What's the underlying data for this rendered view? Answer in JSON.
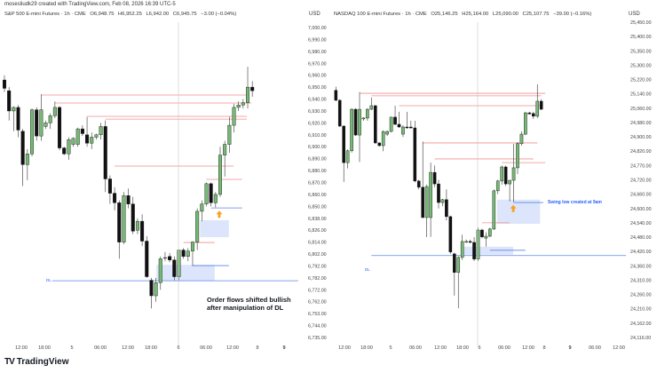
{
  "credit": "mosesliudk29 created with TradingView.com, Feb 08, 2026 16:39 UTC-5",
  "logo": {
    "text": "TradingView",
    "mark": "TV"
  },
  "colors": {
    "up": "#75b975",
    "down": "#111111",
    "red_level": "#f08c8c",
    "blue_level": "#5b86e5",
    "box": "#d6e0fa",
    "arrow": "#f7a21b",
    "separator": "#c8c8c8"
  },
  "chart_data": [
    {
      "type": "candlestick",
      "symbol": "S&P 500 E-mini Futures · 1h · CME",
      "ohlc": {
        "open": "O6,948.75",
        "high": "H6,952.25",
        "low": "L6,942.00",
        "close": "C6,945.75",
        "change": "−3.00 (−0.04%)"
      },
      "currency": "USD",
      "y_ticks": [
        "7,000.00",
        "6,990.00",
        "6,980.00",
        "6,970.00",
        "6,960.00",
        "6,950.00",
        "6,940.00",
        "6,930.00",
        "6,920.00",
        "6,910.00",
        "6,900.00",
        "6,890.00",
        "6,880.00",
        "6,870.00",
        "6,860.00",
        "6,850.00",
        "6,838.00",
        "6,826.00",
        "6,814.00",
        "6,802.00",
        "6,792.00",
        "6,782.00",
        "6,772.00",
        "6,762.00",
        "6,753.00",
        "6,744.00",
        "6,735.00"
      ],
      "y_tick_values": [
        7000,
        6990,
        6980,
        6970,
        6960,
        6950,
        6940,
        6930,
        6920,
        6910,
        6900,
        6890,
        6880,
        6870,
        6860,
        6850,
        6838,
        6826,
        6814,
        6802,
        6792,
        6782,
        6772,
        6762,
        6753,
        6744,
        6735
      ],
      "x_ticks": [
        "12:00",
        "18:00",
        "5",
        "06:00",
        "12:00",
        "18:00",
        "6",
        "06:00",
        "12:00",
        "8",
        "9"
      ],
      "candles": [
        [
          6956,
          6960,
          6946,
          6949
        ],
        [
          6947,
          6950,
          6922,
          6930
        ],
        [
          6930,
          6934,
          6913,
          6933
        ],
        [
          6933,
          6935,
          6908,
          6914
        ],
        [
          6913,
          6915,
          6867,
          6885
        ],
        [
          6885,
          6898,
          6872,
          6894
        ],
        [
          6894,
          6932,
          6892,
          6931
        ],
        [
          6931,
          6933,
          6905,
          6909
        ],
        [
          6909,
          6944,
          6905,
          6931
        ],
        [
          6917,
          6922,
          6915,
          6920
        ],
        [
          6920,
          6928,
          6915,
          6926
        ],
        [
          6926,
          6938,
          6924,
          6933
        ],
        [
          6933,
          6934,
          6897,
          6899
        ],
        [
          6899,
          6900,
          6893,
          6894
        ],
        [
          6894,
          6908,
          6889,
          6906
        ],
        [
          6902,
          6908,
          6900,
          6907
        ],
        [
          6902,
          6916,
          6900,
          6915
        ],
        [
          6915,
          6918,
          6909,
          6911
        ],
        [
          6910,
          6925,
          6900,
          6903
        ],
        [
          6903,
          6912,
          6898,
          6908
        ],
        [
          6908,
          6911,
          6906,
          6910
        ],
        [
          6910,
          6920,
          6906,
          6917
        ],
        [
          6917,
          6922,
          6862,
          6873
        ],
        [
          6873,
          6876,
          6852,
          6861
        ],
        [
          6861,
          6866,
          6846,
          6853
        ],
        [
          6853,
          6855,
          6798,
          6814
        ],
        [
          6814,
          6862,
          6812,
          6859
        ],
        [
          6859,
          6865,
          6848,
          6852
        ],
        [
          6852,
          6858,
          6822,
          6825
        ],
        [
          6826,
          6838,
          6822,
          6835
        ],
        [
          6835,
          6842,
          6810,
          6815
        ],
        [
          6815,
          6820,
          6782,
          6783
        ],
        [
          6780,
          6782,
          6757,
          6767
        ],
        [
          6767,
          6782,
          6762,
          6778
        ],
        [
          6778,
          6800,
          6772,
          6798
        ],
        [
          6799,
          6804,
          6796,
          6799
        ],
        [
          6800,
          6803,
          6795,
          6797
        ],
        [
          6797,
          6800,
          6780,
          6783
        ],
        [
          6783,
          6806,
          6780,
          6806
        ],
        [
          6806,
          6808,
          6798,
          6800
        ],
        [
          6800,
          6808,
          6796,
          6805
        ],
        [
          6805,
          6815,
          6792,
          6814
        ],
        [
          6814,
          6848,
          6806,
          6845
        ],
        [
          6845,
          6855,
          6835,
          6852
        ],
        [
          6852,
          6870,
          6850,
          6869
        ],
        [
          6869,
          6870,
          6850,
          6853
        ],
        [
          6853,
          6862,
          6849,
          6860
        ],
        [
          6860,
          6900,
          6858,
          6893
        ],
        [
          6893,
          6905,
          6875,
          6902
        ],
        [
          6902,
          6925,
          6895,
          6918
        ],
        [
          6918,
          6936,
          6912,
          6933
        ],
        [
          6933,
          6938,
          6930,
          6935
        ],
        [
          6935,
          6940,
          6932,
          6937
        ],
        [
          6937,
          6967,
          6932,
          6950
        ],
        [
          6950,
          6955,
          6942,
          6947
        ]
      ],
      "levels": [
        {
          "kind": "red",
          "price": 6943.4,
          "from": 8,
          "to": 52.8
        },
        {
          "kind": "red",
          "price": 6936.7,
          "from": 11,
          "to": 53.8
        },
        {
          "kind": "red",
          "price": 6925.5,
          "from": 18,
          "to": 52.8
        },
        {
          "kind": "red",
          "price": 6923.2,
          "from": 22,
          "to": 52.8
        },
        {
          "kind": "red",
          "price": 6883.8,
          "from": 24,
          "to": 49.9
        },
        {
          "kind": "red",
          "price": 6872.6,
          "from": 44,
          "to": 51.8
        },
        {
          "kind": "blue",
          "price": 6848.4,
          "from": 45,
          "to": 51.8
        },
        {
          "kind": "red",
          "price": 6813.6,
          "from": 39,
          "to": 45.8
        },
        {
          "kind": "blue",
          "price": 6792.3,
          "from": 41,
          "to": 48.9
        },
        {
          "kind": "blue",
          "price": 6779.6,
          "from": 10.4,
          "to": 64
        }
      ],
      "boxes": [
        {
          "top": 6836,
          "bottom": 6819,
          "from": 42.6,
          "to": 48.9
        },
        {
          "top": 6793,
          "bottom": 6779.6,
          "from": 33.1,
          "to": 45.8
        }
      ],
      "arrow": {
        "at": 46.8,
        "price": 6842
      },
      "dl_label": "DL",
      "annotation": [
        "Order flows shifted bullish",
        "after manipulation of DL"
      ]
    },
    {
      "type": "candlestick",
      "symbol": "NASDAQ 100 E-mini Futures · 1h · CME",
      "ohlc": {
        "open": "O25,146.25",
        "high": "H25,164.00",
        "low": "L25,090.00",
        "close": "C25,107.75",
        "change": "−39.00 (−0.16%)"
      },
      "currency": "USD",
      "y_ticks": [
        "25,450.00",
        "25,400.00",
        "25,350.00",
        "25,300.00",
        "25,220.00",
        "25,140.00",
        "25,060.00",
        "24,980.00",
        "24,900.00",
        "24,820.00",
        "24,770.00",
        "24,720.00",
        "24,660.00",
        "24,600.00",
        "24,540.00",
        "24,480.00",
        "24,420.00",
        "24,360.00",
        "24,310.00",
        "24,260.00",
        "24,210.00",
        "24,162.00",
        "24,116.00"
      ],
      "y_tick_values": [
        25450,
        25400,
        25350,
        25300,
        25220,
        25140,
        25060,
        24980,
        24900,
        24820,
        24770,
        24720,
        24660,
        24600,
        24540,
        24480,
        24420,
        24360,
        24310,
        24260,
        24210,
        24162,
        24116
      ],
      "x_ticks": [
        "12:00",
        "18:00",
        "5",
        "06:00",
        "12:00",
        "18:00",
        "6",
        "06:00",
        "12:00",
        "8",
        "9",
        "06:00",
        "12:00"
      ],
      "candles": [
        [
          25160,
          25180,
          25100,
          25104
        ],
        [
          25104,
          25110,
          24955,
          24960
        ],
        [
          24960,
          24965,
          24711,
          24780
        ],
        [
          24780,
          24830,
          24760,
          24822
        ],
        [
          24822,
          25060,
          24815,
          25054
        ],
        [
          25054,
          25060,
          24905,
          24910
        ],
        [
          24910,
          25150,
          24782,
          25054
        ],
        [
          25000,
          25010,
          24990,
          25005
        ],
        [
          25005,
          25060,
          24990,
          25054
        ],
        [
          25054,
          25120,
          25050,
          25074
        ],
        [
          25074,
          25078,
          24860,
          24866
        ],
        [
          24866,
          24870,
          24845,
          24851
        ],
        [
          24851,
          24935,
          24820,
          24930
        ],
        [
          24915,
          24935,
          24905,
          24930
        ],
        [
          24930,
          25012,
          24925,
          25010
        ],
        [
          25010,
          25074,
          24965,
          24970
        ],
        [
          24970,
          25040,
          24950,
          24955
        ],
        [
          24915,
          24965,
          24900,
          24955
        ],
        [
          24955,
          25040,
          24945,
          24950
        ],
        [
          24955,
          24990,
          24945,
          24950
        ],
        [
          24950,
          24990,
          24710,
          24715
        ],
        [
          24715,
          24720,
          24680,
          24689
        ],
        [
          24689,
          24874,
          24560,
          24562
        ],
        [
          24562,
          24700,
          24480,
          24692
        ],
        [
          24562,
          24780,
          24481,
          24746
        ],
        [
          24746,
          24770,
          24690,
          24703
        ],
        [
          24703,
          24720,
          24600,
          24625
        ],
        [
          24625,
          24640,
          24610,
          24637
        ],
        [
          24637,
          24680,
          24550,
          24566
        ],
        [
          24566,
          24570,
          24410,
          24418
        ],
        [
          24410,
          24415,
          24256,
          24337
        ],
        [
          24337,
          24400,
          24212,
          24395
        ],
        [
          24395,
          24490,
          24385,
          24462
        ],
        [
          24462,
          24470,
          24455,
          24462
        ],
        [
          24462,
          24470,
          24455,
          24458
        ],
        [
          24458,
          24480,
          24380,
          24388
        ],
        [
          24388,
          24520,
          24380,
          24510
        ],
        [
          24510,
          24515,
          24475,
          24481
        ],
        [
          24476,
          24500,
          24440,
          24484
        ],
        [
          24484,
          24520,
          24480,
          24514
        ],
        [
          24514,
          24680,
          24510,
          24674
        ],
        [
          24674,
          24720,
          24660,
          24715
        ],
        [
          24715,
          24770,
          24700,
          24765
        ],
        [
          24765,
          24770,
          24695,
          24703
        ],
        [
          24703,
          24720,
          24630,
          24718
        ],
        [
          24718,
          24860,
          24627,
          24762
        ],
        [
          24762,
          24870,
          24740,
          24862
        ],
        [
          24862,
          24930,
          24850,
          24915
        ],
        [
          24915,
          25040,
          24910,
          25034
        ],
        [
          25034,
          25040,
          25025,
          25028
        ],
        [
          25030,
          25040,
          25000,
          25015
        ],
        [
          25015,
          25193,
          25005,
          25099
        ],
        [
          25099,
          25110,
          25050,
          25054
        ]
      ],
      "levels": [
        {
          "kind": "red",
          "price": 25143,
          "from": 6,
          "to": 53
        },
        {
          "kind": "red",
          "price": 25129,
          "from": 9,
          "to": 52
        },
        {
          "kind": "red",
          "price": 25074,
          "from": 16,
          "to": 51.6
        },
        {
          "kind": "red",
          "price": 24866,
          "from": 22,
          "to": 51
        },
        {
          "kind": "red",
          "price": 24793,
          "from": 25,
          "to": 50
        },
        {
          "kind": "red",
          "price": 24780,
          "from": 42,
          "to": 53
        },
        {
          "kind": "blue",
          "price": 24625,
          "from": 45,
          "to": 52.5
        },
        {
          "kind": "red",
          "price": 24540,
          "from": 37,
          "to": 44
        },
        {
          "kind": "blue",
          "price": 24425,
          "from": 39,
          "to": 48
        },
        {
          "kind": "blue",
          "price": 24403,
          "from": 9,
          "to": 80
        }
      ],
      "boxes": [
        {
          "top": 24637,
          "bottom": 24536,
          "from": 40.8,
          "to": 51.7
        },
        {
          "top": 24440,
          "bottom": 24407,
          "from": 31.6,
          "to": 44.9
        }
      ],
      "arrow": {
        "at": 44.9,
        "price": 24600
      },
      "dl_label": "DL",
      "swing_label": "Swing low created at 9am"
    }
  ]
}
